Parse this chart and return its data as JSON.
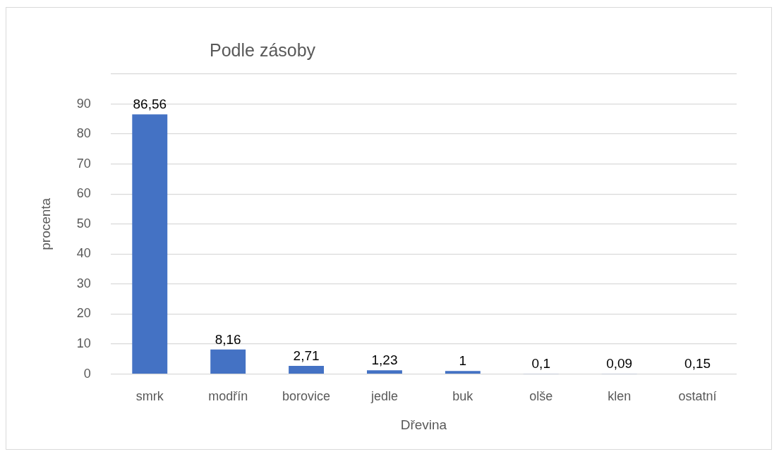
{
  "chart_data": {
    "type": "bar",
    "title": "Podle zásoby",
    "xlabel": "Dřevina",
    "ylabel": "procenta",
    "categories": [
      "smrk",
      "modřín",
      "borovice",
      "jedle",
      "buk",
      "olše",
      "klen",
      "ostatní"
    ],
    "values": [
      86.56,
      8.16,
      2.71,
      1.23,
      1,
      0.1,
      0.09,
      0.15
    ],
    "value_labels": [
      "86,56",
      "8,16",
      "2,71",
      "1,23",
      "1",
      "0,1",
      "0,09",
      "0,15"
    ],
    "color": "#4472c4",
    "ylim": [
      0,
      100
    ],
    "yticks": [
      0,
      10,
      20,
      30,
      40,
      50,
      60,
      70,
      80,
      90,
      {
        "value": 100,
        "label": null
      }
    ],
    "grid": "y"
  }
}
